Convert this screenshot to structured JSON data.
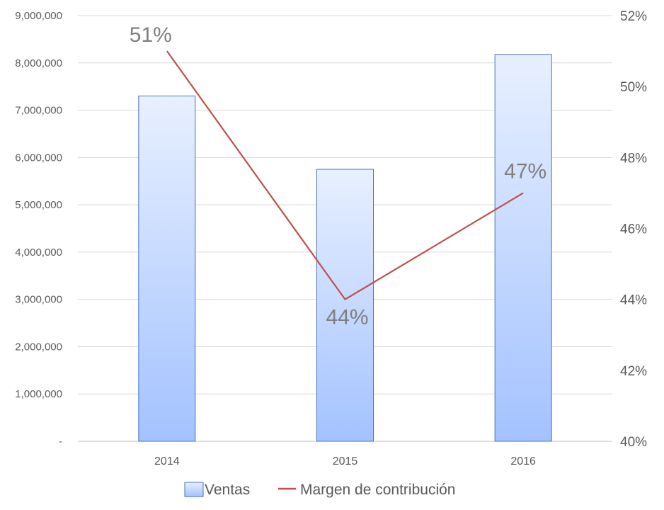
{
  "chart_data": {
    "type": "bar",
    "categories": [
      "2014",
      "2015",
      "2016"
    ],
    "series": [
      {
        "name": "Ventas",
        "type": "bar",
        "axis": "left",
        "values": [
          7300000,
          5750000,
          8180000
        ],
        "color": "#4472c4"
      },
      {
        "name": "Margen de contribución",
        "type": "line",
        "axis": "right",
        "values": [
          51,
          44,
          47
        ],
        "labels": [
          "51%",
          "44%",
          "47%"
        ],
        "color": "#c0504d"
      }
    ],
    "y_left": {
      "range": [
        0,
        9000000
      ],
      "ticks": [
        0,
        1000000,
        2000000,
        3000000,
        4000000,
        5000000,
        6000000,
        7000000,
        8000000,
        9000000
      ],
      "tick_labels": [
        "-",
        "1,000,000",
        "2,000,000",
        "3,000,000",
        "4,000,000",
        "5,000,000",
        "6,000,000",
        "7,000,000",
        "8,000,000",
        "9,000,000"
      ]
    },
    "y_right": {
      "range": [
        40,
        52
      ],
      "ticks": [
        40,
        42,
        44,
        46,
        48,
        50,
        52
      ],
      "tick_labels": [
        "40%",
        "42%",
        "44%",
        "46%",
        "48%",
        "50%",
        "52%"
      ]
    },
    "grid": true,
    "legend": "bottom"
  }
}
